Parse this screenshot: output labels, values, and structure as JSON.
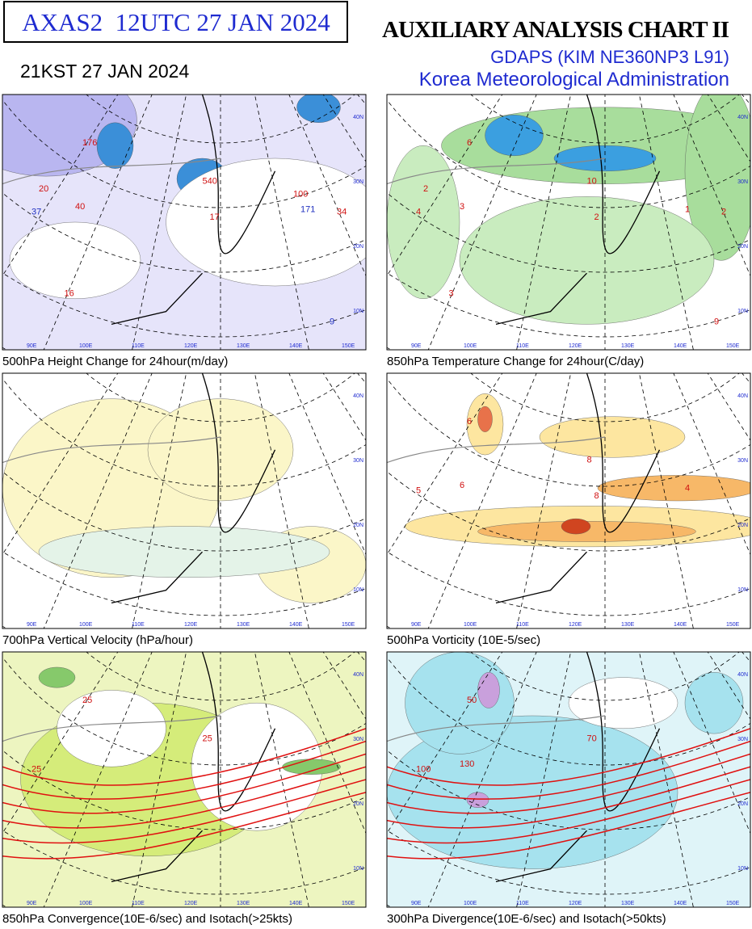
{
  "header": {
    "product_box": "AXAS2  12UTC 27 JAN 2024",
    "title": "AUXILIARY ANALYSIS CHART II",
    "model": "GDAPS (KIM NE360NP3 L91)",
    "agency": "Korea Meteorological Administration",
    "local_time": "21KST 27 JAN 2024"
  },
  "map_labels": {
    "longitudes": [
      "90E",
      "100E",
      "110E",
      "120E",
      "130E",
      "140E",
      "150E"
    ],
    "latitudes": [
      "40N",
      "30N",
      "20N",
      "10N"
    ]
  },
  "panels": [
    {
      "caption": "500hPa Height Change for 24hour(m/day)",
      "contour_labels": [
        "176",
        "540",
        "37",
        "40",
        "17",
        "171",
        "34",
        "16",
        "9",
        "20",
        "100"
      ]
    },
    {
      "caption": "850hPa Temperature Change for 24hour(C/day)",
      "contour_labels": [
        "6",
        "10",
        "4",
        "3",
        "2",
        "1",
        "2",
        "3",
        "9",
        "2"
      ]
    },
    {
      "caption": "700hPa Vertical Velocity (hPa/hour)",
      "contour_labels": []
    },
    {
      "caption": "500hPa Vorticity (10E-5/sec)",
      "contour_labels": [
        "6",
        "8",
        "5",
        "6",
        "8",
        "4"
      ]
    },
    {
      "caption": "850hPa Convergence(10E-6/sec) and Isotach(>25kts)",
      "contour_labels": [
        "25",
        "25",
        "25"
      ]
    },
    {
      "caption": "300hPa Divergence(10E-6/sec) and Isotach(>50kts)",
      "contour_labels": [
        "50",
        "70",
        "100",
        "130"
      ]
    }
  ]
}
